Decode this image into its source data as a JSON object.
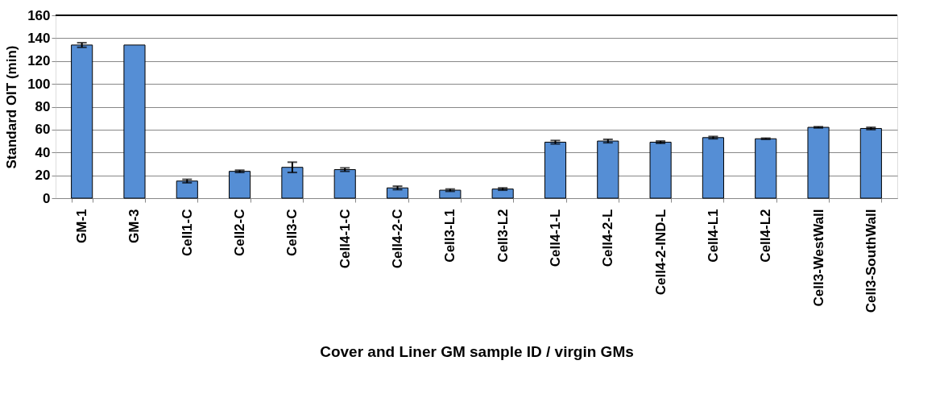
{
  "chart_data": {
    "type": "bar",
    "xlabel": "Cover and Liner GM sample ID / virgin GMs",
    "ylabel": "Standard OIT (min)",
    "categories": [
      "GM-1",
      "GM-3",
      "Cell1-C",
      "Cell2-C",
      "Cell3-C",
      "Cell4-1-C",
      "Cell4-2-C",
      "Cell3-L1",
      "Cell3-L2",
      "Cell4-1-L",
      "Cell4-2-L",
      "Cell4-2-IND-L",
      "Cell4-L1",
      "Cell4-L2",
      "Cell3-WestWall",
      "Cell3-SouthWall"
    ],
    "values": [
      134,
      134,
      15,
      23.5,
      27,
      25,
      9,
      7,
      8,
      49,
      50,
      49,
      53,
      52,
      62,
      61
    ],
    "errors": [
      2,
      null,
      1.5,
      1,
      4.5,
      1.5,
      1.5,
      1,
      1,
      1.5,
      1.5,
      1,
      1,
      0.5,
      0.5,
      1
    ],
    "color": "#558ed5",
    "ylim": [
      0,
      160
    ],
    "yticks": [
      0,
      20,
      40,
      60,
      80,
      100,
      120,
      140,
      160
    ],
    "grid": "y"
  }
}
